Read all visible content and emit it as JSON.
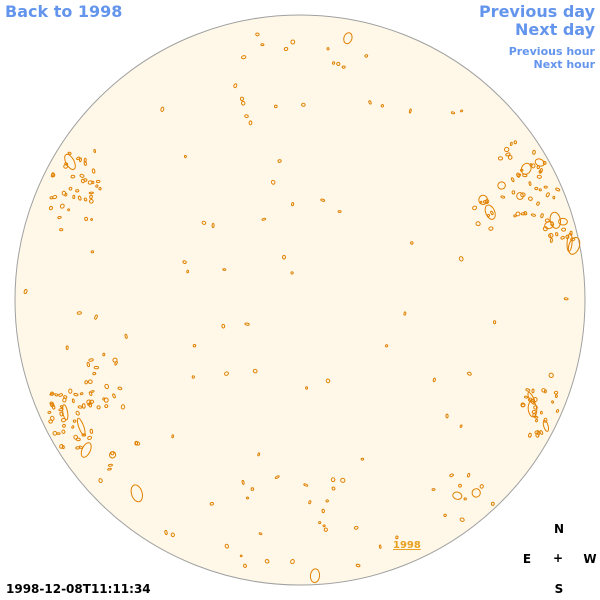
{
  "navigation": {
    "back_label": "Back to 1998",
    "previous_day_label": "Previous day",
    "next_day_label": "Next day",
    "previous_hour_label": "Previous hour",
    "next_hour_label": "Next hour"
  },
  "timestamp": "1998-12-08T11:11:34",
  "compass": {
    "north": "N",
    "south": "S",
    "east": "E",
    "west": "W",
    "center": "+"
  },
  "year_marker_label": "1998",
  "colors": {
    "disk_fill": "#fff8e8",
    "disk_border": "#a0a0a0",
    "contour": "#e08000",
    "link": "#6495ed"
  }
}
